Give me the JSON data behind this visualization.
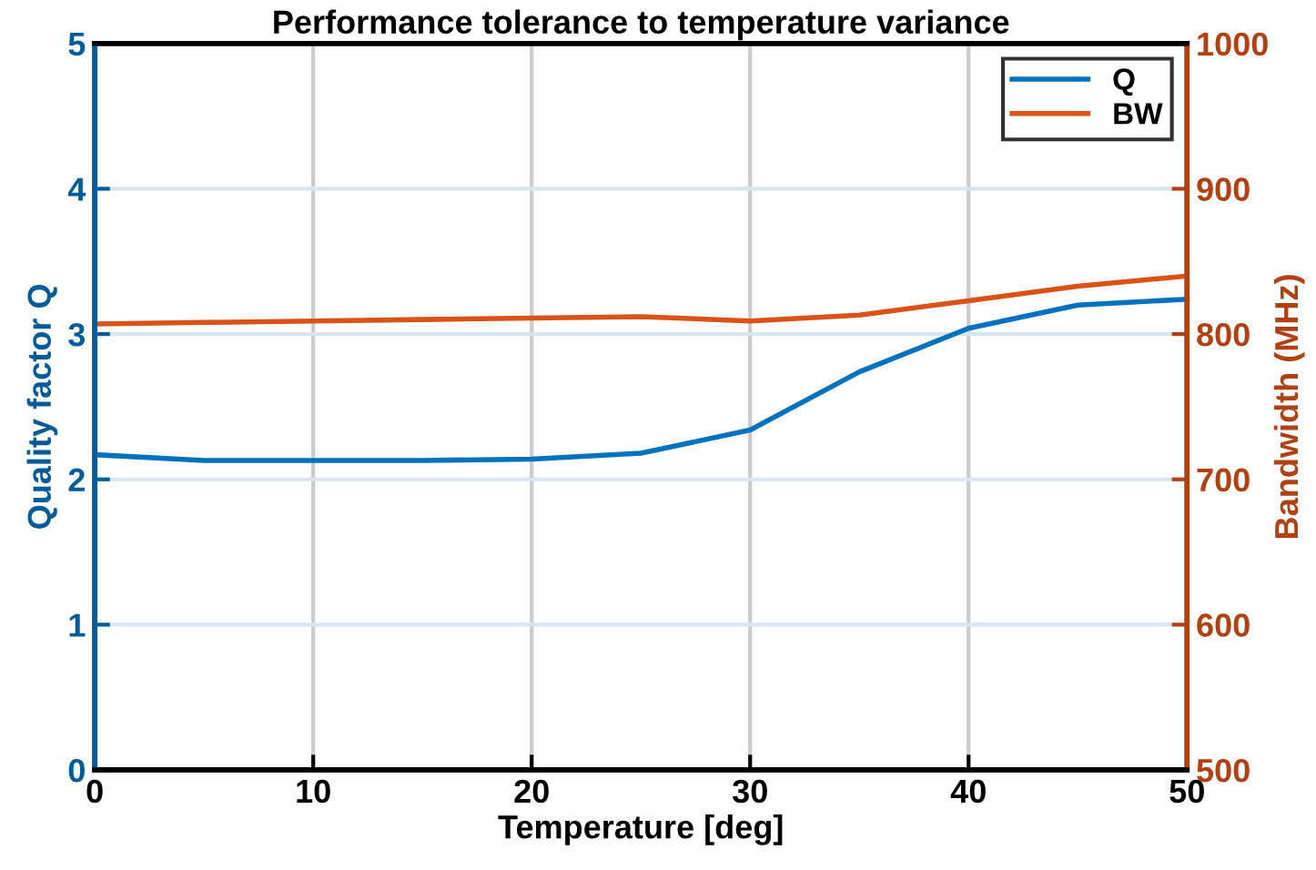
{
  "chart_data": {
    "type": "line",
    "title": "Performance tolerance to temperature variance",
    "xlabel": "Temperature [deg]",
    "ylabel": "Quality factor Q",
    "y2label": "Bandwidth (MHz)",
    "x": [
      0,
      5,
      10,
      15,
      20,
      25,
      30,
      35,
      40,
      45,
      50
    ],
    "series": [
      {
        "name": "Q",
        "color": "#0072bd",
        "values": [
          2.17,
          2.13,
          2.13,
          2.13,
          2.14,
          2.18,
          2.34,
          2.74,
          3.04,
          3.2,
          3.24
        ]
      },
      {
        "name": "BW",
        "color": "#d95319",
        "axis": "y2",
        "values": [
          807,
          808,
          809,
          810,
          811,
          812,
          809,
          813,
          823,
          833,
          840
        ]
      }
    ],
    "xlim": [
      0,
      50
    ],
    "xticks": [
      0,
      10,
      20,
      30,
      40,
      50
    ],
    "ylim": [
      0,
      5
    ],
    "yticks": [
      0,
      1,
      2,
      3,
      4,
      5
    ],
    "y2lim": [
      500,
      1000
    ],
    "y2ticks": [
      500,
      600,
      700,
      800,
      900,
      1000
    ],
    "grid": true,
    "legend": "top right",
    "marker": "none",
    "line_style": "solid"
  }
}
